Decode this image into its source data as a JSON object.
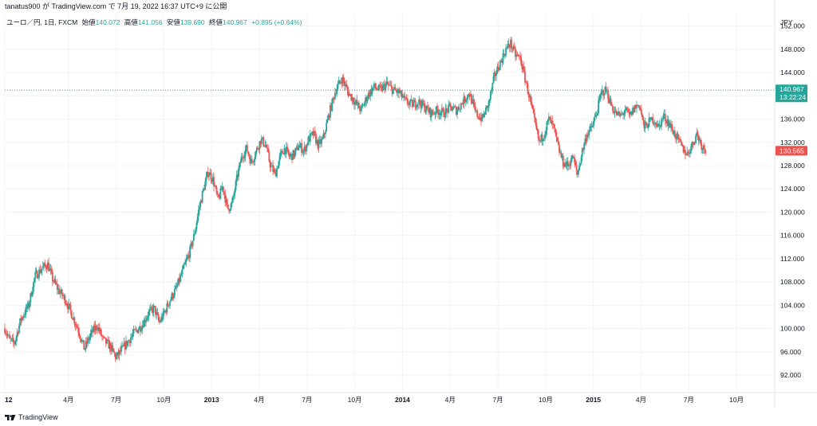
{
  "header": {
    "attribution": "tanatus900 が TradingView.com で 7月 19, 2022 16:37 UTC+9 に公開"
  },
  "legend": {
    "symbol": "ユーロ／円, 1日, FXCM",
    "open_label": "始値",
    "open_value": "140.072",
    "high_label": "高値",
    "high_value": "141.056",
    "low_label": "安値",
    "low_value": "139.690",
    "close_label": "終値",
    "close_value": "140.967",
    "change": "+0.895 (+0.64%)"
  },
  "footer": {
    "brand": "TradingView"
  },
  "colors": {
    "up": "#26a69a",
    "down": "#ef5350",
    "grid": "#f0f3fa",
    "text": "#131722",
    "axis_line": "#e0e3eb"
  },
  "chart_data": {
    "type": "candlestick",
    "title": "ユーロ／円, 1日, FXCM",
    "currency": "JPY",
    "ylim": [
      89,
      154
    ],
    "y_ticks": [
      "152.000",
      "148.000",
      "144.000",
      "140.000",
      "136.000",
      "132.000",
      "128.000",
      "124.000",
      "120.000",
      "116.000",
      "112.000",
      "108.000",
      "104.000",
      "100.000",
      "96.000",
      "92.000"
    ],
    "y_tick_values": [
      152,
      148,
      144,
      140,
      136,
      132,
      128,
      124,
      120,
      116,
      112,
      108,
      104,
      100,
      96,
      92
    ],
    "x_ticks": [
      {
        "label": "12",
        "t": 0
      },
      {
        "label": "4月",
        "t": 4
      },
      {
        "label": "7月",
        "t": 7
      },
      {
        "label": "10月",
        "t": 10
      },
      {
        "label": "2013",
        "t": 13
      },
      {
        "label": "4月",
        "t": 16
      },
      {
        "label": "7月",
        "t": 19
      },
      {
        "label": "10月",
        "t": 22
      },
      {
        "label": "2014",
        "t": 25
      },
      {
        "label": "4月",
        "t": 28
      },
      {
        "label": "7月",
        "t": 31
      },
      {
        "label": "10月",
        "t": 34
      },
      {
        "label": "2015",
        "t": 37
      },
      {
        "label": "4月",
        "t": 40
      },
      {
        "label": "7月",
        "t": 43
      },
      {
        "label": "10月",
        "t": 46
      }
    ],
    "xlim": [
      0,
      48.4
    ],
    "price_path": [
      [
        0,
        100.0
      ],
      [
        0.3,
        98.0
      ],
      [
        0.6,
        97.5
      ],
      [
        1.0,
        101.5
      ],
      [
        1.5,
        104.0
      ],
      [
        1.9,
        109.0
      ],
      [
        2.4,
        110.5
      ],
      [
        2.7,
        111.0
      ],
      [
        3.0,
        108.5
      ],
      [
        3.4,
        106.5
      ],
      [
        3.8,
        105.0
      ],
      [
        4.2,
        102.5
      ],
      [
        4.6,
        100.0
      ],
      [
        5.0,
        96.5
      ],
      [
        5.4,
        99.0
      ],
      [
        5.8,
        100.5
      ],
      [
        6.2,
        98.0
      ],
      [
        6.6,
        97.0
      ],
      [
        7.0,
        95.0
      ],
      [
        7.4,
        96.5
      ],
      [
        7.8,
        98.0
      ],
      [
        8.2,
        99.5
      ],
      [
        8.6,
        100.5
      ],
      [
        9.0,
        102.5
      ],
      [
        9.4,
        103.5
      ],
      [
        9.7,
        101.0
      ],
      [
        10.0,
        102.5
      ],
      [
        10.4,
        105.0
      ],
      [
        10.8,
        107.0
      ],
      [
        11.2,
        110.0
      ],
      [
        11.6,
        113.0
      ],
      [
        11.9,
        116.0
      ],
      [
        12.2,
        120.5
      ],
      [
        12.5,
        124.0
      ],
      [
        12.8,
        127.0
      ],
      [
        13.1,
        125.5
      ],
      [
        13.4,
        122.0
      ],
      [
        13.7,
        124.5
      ],
      [
        14.0,
        120.5
      ],
      [
        14.3,
        121.5
      ],
      [
        14.6,
        126.0
      ],
      [
        14.9,
        129.5
      ],
      [
        15.2,
        131.0
      ],
      [
        15.5,
        128.5
      ],
      [
        15.8,
        130.5
      ],
      [
        16.1,
        132.5
      ],
      [
        16.4,
        131.5
      ],
      [
        16.7,
        128.0
      ],
      [
        17.0,
        126.5
      ],
      [
        17.3,
        129.5
      ],
      [
        17.6,
        131.0
      ],
      [
        17.9,
        129.5
      ],
      [
        18.2,
        130.0
      ],
      [
        18.5,
        131.5
      ],
      [
        18.8,
        130.5
      ],
      [
        19.1,
        132.5
      ],
      [
        19.4,
        133.5
      ],
      [
        19.7,
        131.5
      ],
      [
        20.0,
        132.5
      ],
      [
        20.4,
        137.0
      ],
      [
        20.8,
        141.0
      ],
      [
        21.2,
        143.0
      ],
      [
        21.6,
        140.5
      ],
      [
        22.0,
        139.0
      ],
      [
        22.4,
        137.5
      ],
      [
        22.8,
        140.0
      ],
      [
        23.2,
        141.5
      ],
      [
        23.6,
        141.0
      ],
      [
        24.0,
        142.0
      ],
      [
        24.4,
        141.0
      ],
      [
        24.8,
        140.5
      ],
      [
        25.2,
        139.0
      ],
      [
        25.6,
        138.5
      ],
      [
        26.0,
        139.0
      ],
      [
        26.4,
        138.0
      ],
      [
        26.8,
        137.0
      ],
      [
        27.2,
        137.5
      ],
      [
        27.6,
        137.0
      ],
      [
        28.0,
        138.0
      ],
      [
        28.4,
        137.5
      ],
      [
        28.8,
        139.0
      ],
      [
        29.2,
        140.5
      ],
      [
        29.6,
        137.0
      ],
      [
        30.0,
        136.0
      ],
      [
        30.4,
        138.5
      ],
      [
        30.8,
        143.5
      ],
      [
        31.2,
        146.0
      ],
      [
        31.5,
        148.0
      ],
      [
        31.8,
        149.0
      ],
      [
        32.1,
        147.0
      ],
      [
        32.4,
        146.5
      ],
      [
        32.7,
        143.0
      ],
      [
        33.0,
        139.5
      ],
      [
        33.3,
        135.5
      ],
      [
        33.6,
        132.0
      ],
      [
        33.9,
        133.5
      ],
      [
        34.2,
        136.0
      ],
      [
        34.5,
        134.5
      ],
      [
        34.8,
        131.0
      ],
      [
        35.1,
        128.5
      ],
      [
        35.4,
        128.0
      ],
      [
        35.7,
        129.5
      ],
      [
        36.0,
        126.5
      ],
      [
        36.3,
        130.5
      ],
      [
        36.6,
        133.5
      ],
      [
        36.9,
        134.5
      ],
      [
        37.2,
        137.0
      ],
      [
        37.5,
        140.5
      ],
      [
        37.8,
        141.0
      ],
      [
        38.1,
        138.5
      ],
      [
        38.4,
        137.0
      ],
      [
        38.7,
        136.5
      ],
      [
        39.0,
        137.5
      ],
      [
        39.3,
        136.5
      ],
      [
        39.6,
        138.0
      ],
      [
        39.9,
        138.5
      ],
      [
        40.2,
        134.5
      ],
      [
        40.5,
        135.5
      ],
      [
        40.8,
        136.0
      ],
      [
        41.1,
        134.5
      ],
      [
        41.4,
        136.5
      ],
      [
        41.7,
        135.5
      ],
      [
        42.0,
        134.0
      ],
      [
        42.3,
        132.5
      ],
      [
        42.6,
        131.0
      ],
      [
        42.9,
        130.0
      ],
      [
        43.2,
        131.5
      ],
      [
        43.5,
        133.5
      ],
      [
        43.8,
        131.5
      ],
      [
        44.1,
        130.5
      ]
    ],
    "x_scale_map": "piecewise",
    "last_price": {
      "value": 140.967,
      "label": "140.967",
      "countdown": "13:22:24",
      "color": "#26a69a"
    },
    "secondary_price": {
      "value": 130.565,
      "label": "130.565",
      "color": "#ef5350"
    }
  }
}
